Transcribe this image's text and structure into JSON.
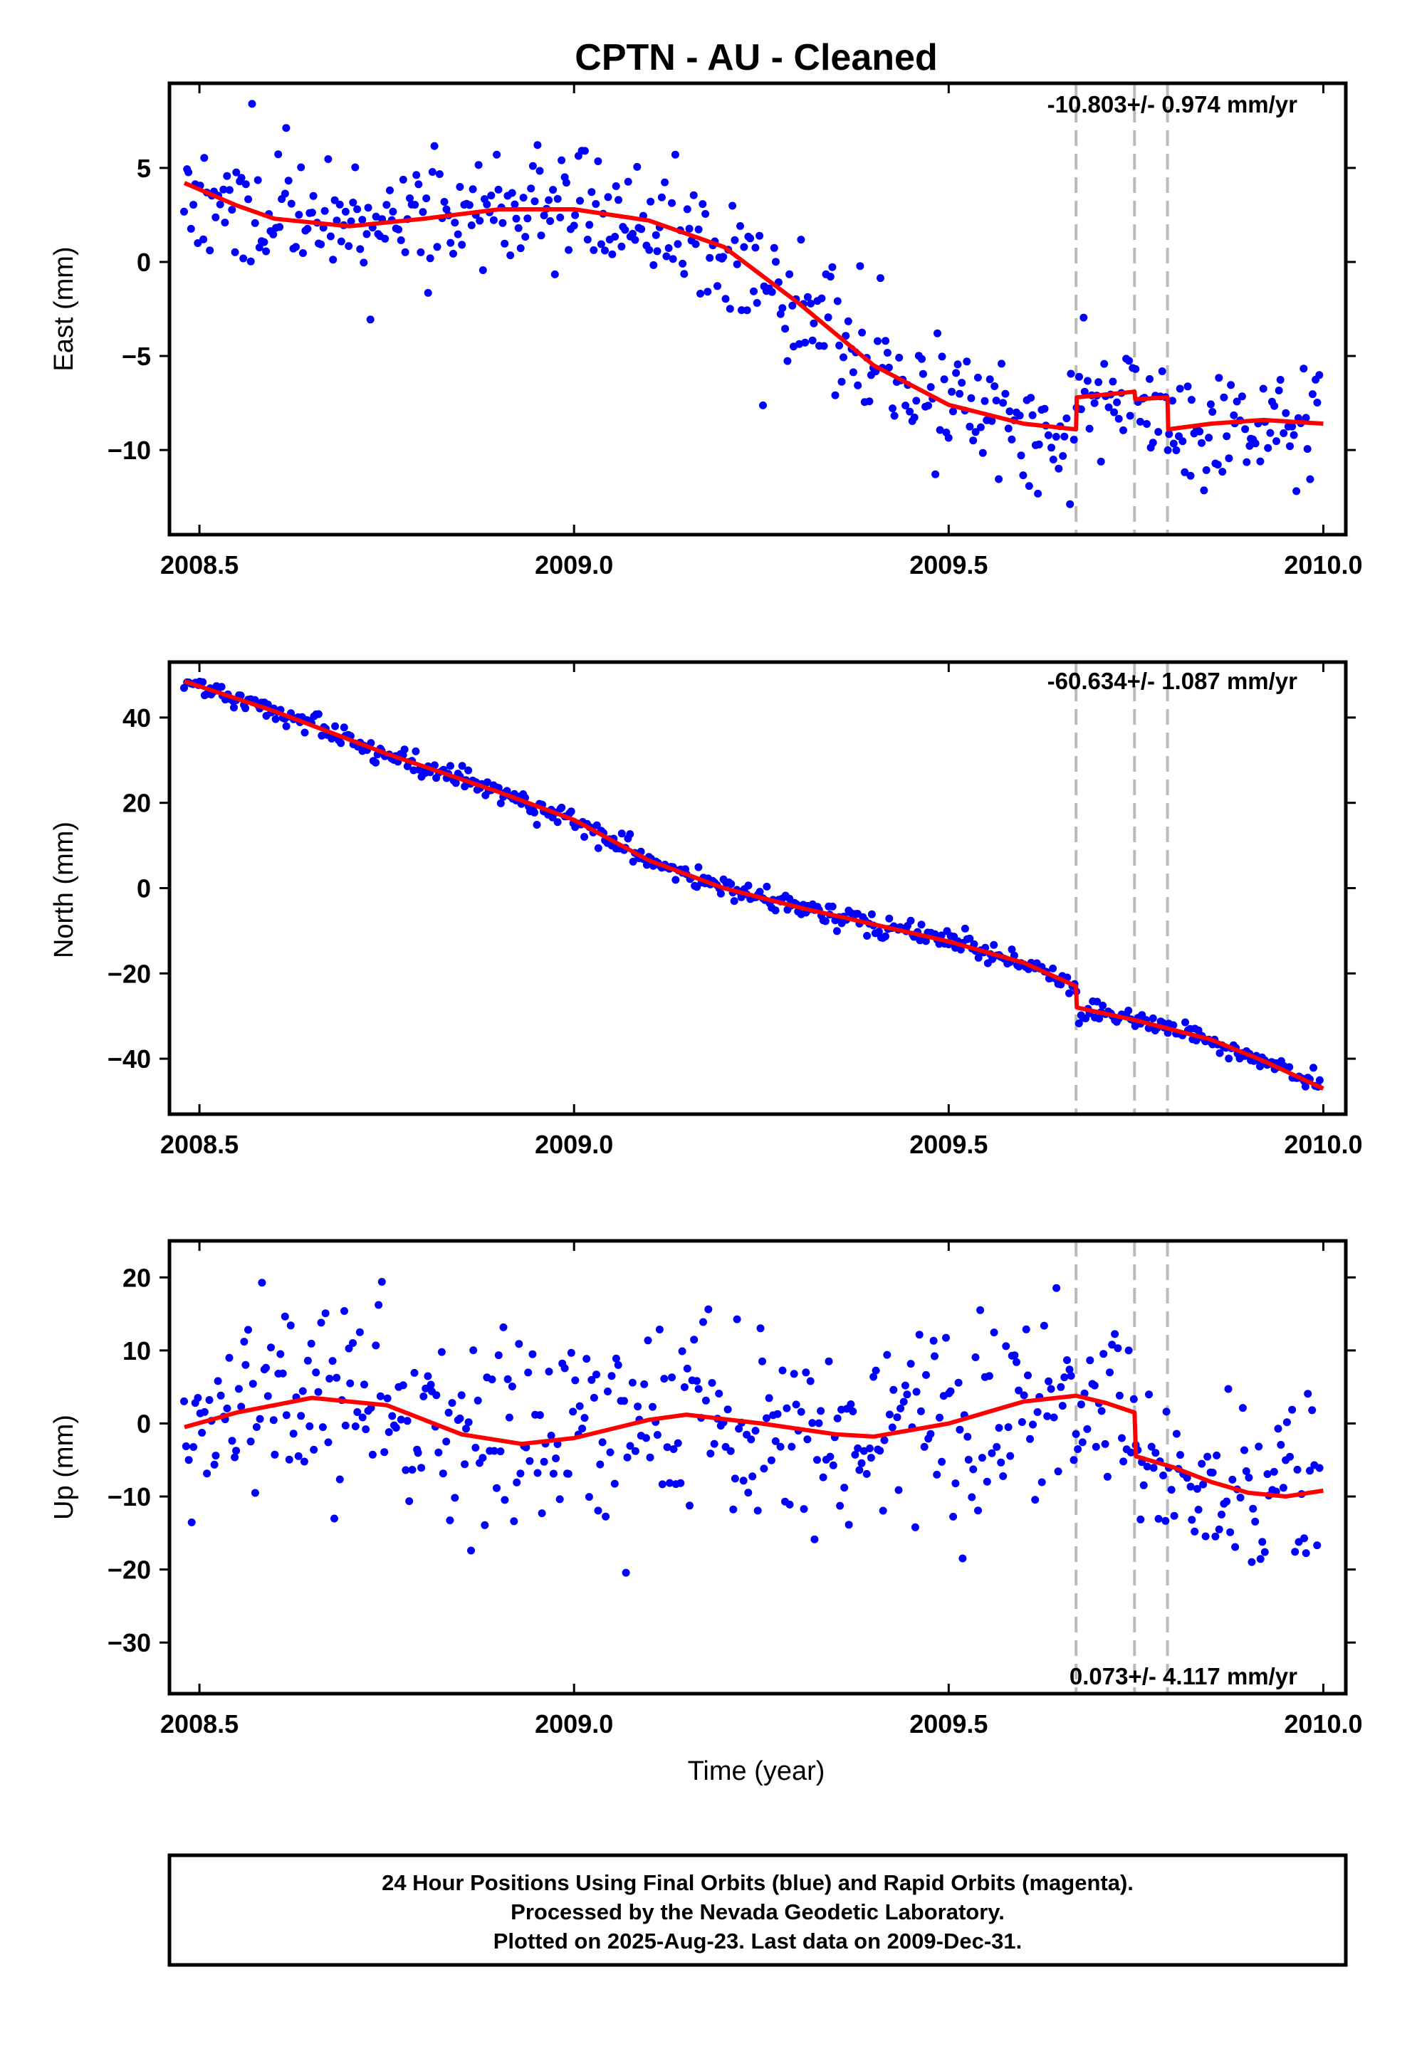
{
  "title": "CPTN  - AU - Cleaned",
  "xlabel": "Time (year)",
  "footer": {
    "line1": "24 Hour Positions Using Final Orbits (blue) and Rapid Orbits (magenta).",
    "line2": "Processed by the Nevada Geodetic Laboratory.",
    "line3": "Plotted on 2025-Aug-23. Last data on 2009-Dec-31."
  },
  "colors": {
    "points": "#0000ff",
    "fit": "#ff0000",
    "breaks": "#bbbbbb"
  },
  "chart_data": [
    {
      "type": "scatter",
      "ylabel": "East (mm)",
      "rate": "-10.803+/- 0.974 mm/yr",
      "xlim": [
        2008.46,
        2010.03
      ],
      "ylim": [
        -14.5,
        9.5
      ],
      "xticks": [
        2008.5,
        2009.0,
        2009.5,
        2010.0
      ],
      "xtick_labels": [
        "2008.5",
        "2009.0",
        "2009.5",
        "2010.0"
      ],
      "yticks": [
        5,
        0,
        -5,
        -10
      ],
      "ytick_labels": [
        "5",
        "0",
        "−5",
        "−10"
      ],
      "breaks": [
        2009.67,
        2009.748,
        2009.792
      ],
      "fit": [
        [
          2008.48,
          4.2
        ],
        [
          2008.55,
          3.0
        ],
        [
          2008.6,
          2.3
        ],
        [
          2008.7,
          1.9
        ],
        [
          2008.8,
          2.3
        ],
        [
          2008.9,
          2.8
        ],
        [
          2009.0,
          2.8
        ],
        [
          2009.1,
          2.2
        ],
        [
          2009.2,
          0.8
        ],
        [
          2009.3,
          -2.2
        ],
        [
          2009.4,
          -5.5
        ],
        [
          2009.5,
          -7.6
        ],
        [
          2009.6,
          -8.6
        ],
        [
          2009.67,
          -8.9
        ],
        [
          2009.671,
          -7.2
        ],
        [
          2009.748,
          -6.9
        ],
        [
          2009.749,
          -7.3
        ],
        [
          2009.792,
          -7.2
        ],
        [
          2009.793,
          -8.9
        ],
        [
          2009.85,
          -8.6
        ],
        [
          2009.92,
          -8.4
        ],
        [
          2010.0,
          -8.6
        ]
      ],
      "fit_shift": {
        "start": 2009.67,
        "end": 2009.792,
        "offset": 1.7
      },
      "points": {
        "count": 500,
        "sigma": 1.6,
        "seed": 11
      }
    },
    {
      "type": "scatter",
      "ylabel": "North (mm)",
      "rate": "-60.634+/- 1.087 mm/yr",
      "xlim": [
        2008.46,
        2010.03
      ],
      "ylim": [
        -53,
        53
      ],
      "xticks": [
        2008.5,
        2009.0,
        2009.5,
        2010.0
      ],
      "xtick_labels": [
        "2008.5",
        "2009.0",
        "2009.5",
        "2010.0"
      ],
      "yticks": [
        40,
        20,
        0,
        -20,
        -40
      ],
      "ytick_labels": [
        "40",
        "20",
        "0",
        "−20",
        "−40"
      ],
      "breaks": [
        2009.67,
        2009.748,
        2009.792
      ],
      "fit": [
        [
          2008.48,
          48.5
        ],
        [
          2008.6,
          41.5
        ],
        [
          2008.75,
          31.5
        ],
        [
          2008.9,
          22.5
        ],
        [
          2009.0,
          16.0
        ],
        [
          2009.1,
          6.5
        ],
        [
          2009.2,
          0.0
        ],
        [
          2009.3,
          -4.5
        ],
        [
          2009.4,
          -8.5
        ],
        [
          2009.5,
          -12.5
        ],
        [
          2009.6,
          -17.5
        ],
        [
          2009.67,
          -23.0
        ],
        [
          2009.671,
          -28.0
        ],
        [
          2009.75,
          -31.0
        ],
        [
          2009.85,
          -35.5
        ],
        [
          2009.92,
          -40.5
        ],
        [
          2010.0,
          -47.0
        ]
      ],
      "points": {
        "count": 500,
        "sigma": 1.2,
        "seed": 23
      }
    },
    {
      "type": "scatter",
      "ylabel": "Up (mm)",
      "rate": "0.073+/- 4.117 mm/yr",
      "xlim": [
        2008.46,
        2010.03
      ],
      "ylim": [
        -37,
        25
      ],
      "xticks": [
        2008.5,
        2009.0,
        2009.5,
        2010.0
      ],
      "xtick_labels": [
        "2008.5",
        "2009.0",
        "2009.5",
        "2010.0"
      ],
      "yticks": [
        20,
        10,
        0,
        -10,
        -20,
        -30
      ],
      "ytick_labels": [
        "20",
        "10",
        "0",
        "−10",
        "−20",
        "−30"
      ],
      "breaks": [
        2009.67,
        2009.748,
        2009.792
      ],
      "fit": [
        [
          2008.48,
          -0.5
        ],
        [
          2008.55,
          1.5
        ],
        [
          2008.65,
          3.5
        ],
        [
          2008.75,
          2.5
        ],
        [
          2008.85,
          -1.5
        ],
        [
          2008.93,
          -2.8
        ],
        [
          2009.0,
          -2.0
        ],
        [
          2009.1,
          0.5
        ],
        [
          2009.15,
          1.2
        ],
        [
          2009.25,
          0.0
        ],
        [
          2009.35,
          -1.5
        ],
        [
          2009.4,
          -1.8
        ],
        [
          2009.5,
          0.0
        ],
        [
          2009.6,
          3.0
        ],
        [
          2009.67,
          3.8
        ],
        [
          2009.71,
          2.8
        ],
        [
          2009.748,
          1.5
        ],
        [
          2009.75,
          -4.5
        ],
        [
          2009.8,
          -6.0
        ],
        [
          2009.85,
          -8.0
        ],
        [
          2009.9,
          -9.5
        ],
        [
          2009.95,
          -10.0
        ],
        [
          2010.0,
          -9.2
        ]
      ],
      "points": {
        "count": 500,
        "sigma": 6.5,
        "seed": 37
      }
    }
  ]
}
